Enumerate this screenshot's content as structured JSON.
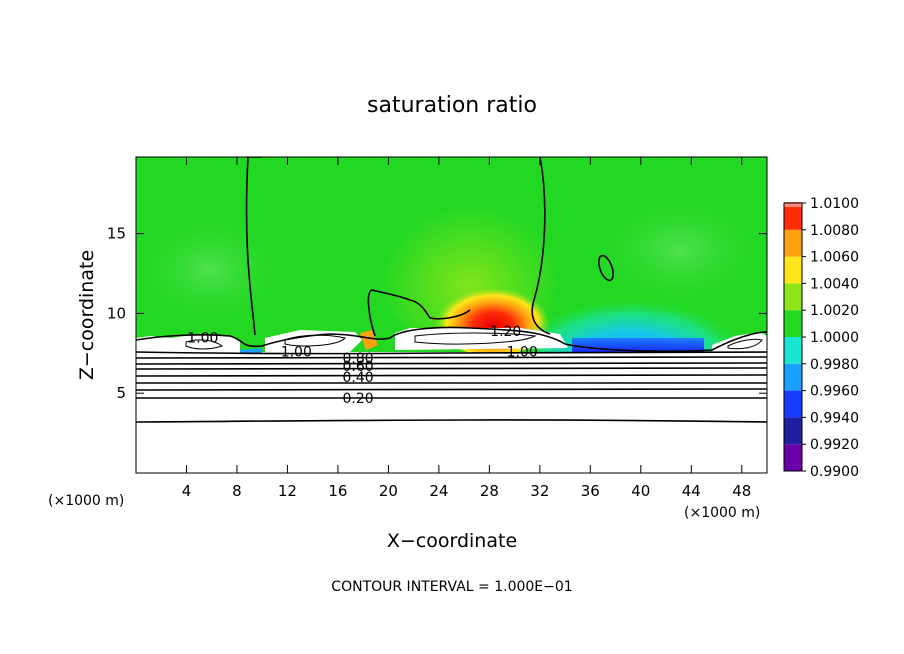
{
  "chart_data": {
    "type": "heatmap",
    "title": "saturation ratio",
    "xlabel": "X−coordinate",
    "ylabel": "Z−coordinate",
    "x_unit_left": "(×1000 m)",
    "x_unit_right": "(×1000 m)",
    "xlim": [
      0,
      50
    ],
    "ylim": [
      0,
      19.8
    ],
    "xticks": [
      4,
      8,
      12,
      16,
      20,
      24,
      28,
      32,
      36,
      40,
      44,
      48
    ],
    "yticks": [
      5,
      10,
      15
    ],
    "colorbar": {
      "levels": [
        0.99,
        0.992,
        0.994,
        0.996,
        0.998,
        1.0,
        1.002,
        1.004,
        1.006,
        1.008,
        1.01
      ],
      "labels": [
        "0.9900",
        "0.9920",
        "0.9940",
        "0.9960",
        "0.9980",
        "1.0000",
        "1.0020",
        "1.0040",
        "1.0060",
        "1.0080",
        "1.0100"
      ],
      "colors": [
        "#6a00a8",
        "#1f1fa0",
        "#1a3cff",
        "#1aa0ff",
        "#19e6d2",
        "#23d823",
        "#8ce619",
        "#ffe61a",
        "#ffa010",
        "#ff2d0a",
        "#ff8a80"
      ]
    },
    "contour_labels": [
      {
        "text": "1.00",
        "x": 5.3,
        "y": 8.5
      },
      {
        "text": "1.00",
        "x": 12.7,
        "y": 7.6
      },
      {
        "text": "1.20",
        "x": 29.3,
        "y": 8.9
      },
      {
        "text": "1.00",
        "x": 30.6,
        "y": 7.6
      },
      {
        "text": "0.80",
        "x": 17.6,
        "y": 7.2
      },
      {
        "text": "0.60",
        "x": 17.6,
        "y": 6.7
      },
      {
        "text": "0.40",
        "x": 17.6,
        "y": 6.0
      },
      {
        "text": "0.20",
        "x": 17.6,
        "y": 4.7
      }
    ],
    "contour_interval_text": "CONTOUR INTERVAL = 1.000E−01"
  }
}
